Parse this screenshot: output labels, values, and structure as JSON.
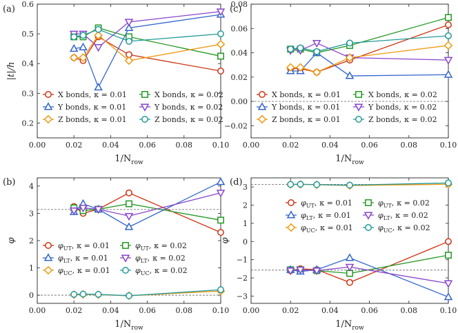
{
  "figure": {
    "panel_labels": [
      "(a)",
      "(b)",
      "(c)",
      "(d)"
    ]
  },
  "chart_data": [
    {
      "panel": "(a)",
      "type": "line",
      "xlabel_main": "1/N",
      "xlabel_sub": "row",
      "ylabel": "|t|/h",
      "xlim": [
        0,
        0.1
      ],
      "ylim": [
        0.15,
        0.6
      ],
      "xticks": [
        "0.00",
        "0.02",
        "0.04",
        "0.06",
        "0.08",
        "0.10"
      ],
      "yticks": [
        "0.2",
        "0.3",
        "0.4",
        "0.5",
        "0.6"
      ],
      "ytick_values": [
        0.2,
        0.3,
        0.4,
        0.5,
        0.6
      ],
      "legend": {
        "columns": 2,
        "items": [
          {
            "label": "X bonds,",
            "kappa": "κ = 0.01",
            "series": 0
          },
          {
            "label": "X bonds,",
            "kappa": "κ = 0.02",
            "series": 1
          },
          {
            "label": "Y bonds,",
            "kappa": "κ = 0.01",
            "series": 2
          },
          {
            "label": "Y bonds,",
            "kappa": "κ = 0.02",
            "series": 3
          },
          {
            "label": "Z bonds,",
            "kappa": "κ = 0.01",
            "series": 4
          },
          {
            "label": "Z bonds,",
            "kappa": "κ = 0.02",
            "series": 5
          }
        ]
      },
      "x": [
        0.02,
        0.025,
        0.0333,
        0.05,
        0.1
      ],
      "series": [
        {
          "name": "X bonds, κ = 0.01",
          "color": "#cc3311",
          "marker": "circle",
          "values": [
            0.42,
            0.41,
            0.49,
            0.43,
            0.375
          ]
        },
        {
          "name": "X bonds, κ = 0.02",
          "color": "#229922",
          "marker": "square",
          "values": [
            0.49,
            0.49,
            0.52,
            0.49,
            0.425
          ]
        },
        {
          "name": "Y bonds, κ = 0.01",
          "color": "#3366cc",
          "marker": "triangle-up",
          "values": [
            0.45,
            0.455,
            0.32,
            0.52,
            0.565
          ]
        },
        {
          "name": "Y bonds, κ = 0.02",
          "color": "#8844cc",
          "marker": "triangle-down",
          "values": [
            0.5,
            0.5,
            0.455,
            0.54,
            0.575
          ]
        },
        {
          "name": "Z bonds, κ = 0.01",
          "color": "#ee9911",
          "marker": "diamond",
          "values": [
            0.42,
            0.42,
            0.495,
            0.41,
            0.465
          ]
        },
        {
          "name": "Z bonds, κ = 0.02",
          "color": "#229999",
          "marker": "circle",
          "values": [
            0.49,
            0.495,
            0.515,
            0.475,
            0.5
          ]
        }
      ]
    },
    {
      "panel": "(c)",
      "type": "line",
      "xlabel_main": "1/N",
      "xlabel_sub": "row",
      "ylabel": "",
      "xlim": [
        0,
        0.1
      ],
      "ylim": [
        -0.03,
        0.08
      ],
      "xticks": [
        "0.00",
        "0.02",
        "0.04",
        "0.06",
        "0.08",
        "0.10"
      ],
      "yticks": [
        "−0.02",
        "0.00",
        "0.02",
        "0.04",
        "0.06",
        "0.08"
      ],
      "ytick_values": [
        -0.02,
        0,
        0.02,
        0.04,
        0.06,
        0.08
      ],
      "hlines": [
        0
      ],
      "legend": {
        "columns": 2,
        "items": [
          {
            "label": "X bonds,",
            "kappa": "κ = 0.01",
            "series": 0
          },
          {
            "label": "X bonds,",
            "kappa": "κ = 0.02",
            "series": 1
          },
          {
            "label": "Y bonds,",
            "kappa": "κ = 0.01",
            "series": 2
          },
          {
            "label": "Y bonds,",
            "kappa": "κ = 0.02",
            "series": 3
          },
          {
            "label": "Z bonds,",
            "kappa": "κ = 0.01",
            "series": 4
          },
          {
            "label": "Z bonds,",
            "kappa": "κ = 0.02",
            "series": 5
          }
        ]
      },
      "x": [
        0.02,
        0.025,
        0.0333,
        0.05,
        0.1
      ],
      "series": [
        {
          "name": "X bonds, κ = 0.01",
          "color": "#cc3311",
          "marker": "circle",
          "values": [
            0.027,
            0.027,
            0.024,
            0.034,
            0.063
          ]
        },
        {
          "name": "X bonds, κ = 0.02",
          "color": "#229922",
          "marker": "square",
          "values": [
            0.043,
            0.043,
            0.04,
            0.046,
            0.069
          ]
        },
        {
          "name": "Y bonds, κ = 0.01",
          "color": "#3366cc",
          "marker": "triangle-up",
          "values": [
            0.025,
            0.025,
            0.04,
            0.021,
            0.022
          ]
        },
        {
          "name": "Y bonds, κ = 0.02",
          "color": "#8844cc",
          "marker": "triangle-down",
          "values": [
            0.042,
            0.042,
            0.048,
            0.036,
            0.034
          ]
        },
        {
          "name": "Z bonds, κ = 0.01",
          "color": "#ee9911",
          "marker": "diamond",
          "values": [
            0.028,
            0.028,
            0.024,
            0.036,
            0.046
          ]
        },
        {
          "name": "Z bonds, κ = 0.02",
          "color": "#229999",
          "marker": "circle",
          "values": [
            0.043,
            0.044,
            0.041,
            0.048,
            0.054
          ]
        }
      ]
    },
    {
      "panel": "(b)",
      "type": "line",
      "xlabel_main": "1/N",
      "xlabel_sub": "row",
      "ylabel": "φ",
      "xlim": [
        0,
        0.1
      ],
      "ylim": [
        -0.3,
        4.3
      ],
      "xticks": [
        "0.00",
        "0.02",
        "0.04",
        "0.06",
        "0.08",
        "0.10"
      ],
      "yticks": [
        "0",
        "1",
        "2",
        "3",
        "4"
      ],
      "ytick_values": [
        0,
        1,
        2,
        3,
        4
      ],
      "hlines": [
        0,
        3.1416
      ],
      "legend": {
        "columns": 2,
        "items": [
          {
            "label": "φ",
            "sub": "UT",
            "kappa": "κ = 0.01",
            "series": 0
          },
          {
            "label": "φ",
            "sub": "UT",
            "kappa": "κ = 0.02",
            "series": 1
          },
          {
            "label": "φ",
            "sub": "LT",
            "kappa": "κ = 0.01",
            "series": 2
          },
          {
            "label": "φ",
            "sub": "LT",
            "kappa": "κ = 0.02",
            "series": 3
          },
          {
            "label": "φ",
            "sub": "UC",
            "kappa": "κ = 0.01",
            "series": 4
          },
          {
            "label": "φ",
            "sub": "UC",
            "kappa": "κ = 0.02",
            "series": 5
          }
        ]
      },
      "x": [
        0.02,
        0.025,
        0.0333,
        0.05,
        0.1
      ],
      "series": [
        {
          "name": "φUT, κ = 0.01",
          "color": "#cc3311",
          "marker": "circle",
          "values": [
            3.25,
            3.0,
            3.15,
            3.75,
            2.3
          ]
        },
        {
          "name": "φUT, κ = 0.02",
          "color": "#229922",
          "marker": "square",
          "values": [
            3.2,
            3.1,
            3.15,
            3.35,
            2.75
          ]
        },
        {
          "name": "φLT, κ = 0.01",
          "color": "#3366cc",
          "marker": "triangle-up",
          "values": [
            3.05,
            3.35,
            3.15,
            2.5,
            4.15
          ]
        },
        {
          "name": "φLT, κ = 0.02",
          "color": "#8844cc",
          "marker": "triangle-down",
          "values": [
            3.1,
            3.2,
            3.15,
            2.9,
            3.75
          ]
        },
        {
          "name": "φUC, κ = 0.01",
          "color": "#ee9911",
          "marker": "diamond",
          "values": [
            0.02,
            0.03,
            0.02,
            -0.02,
            0.15
          ]
        },
        {
          "name": "φUC, κ = 0.02",
          "color": "#229999",
          "marker": "circle",
          "values": [
            0.03,
            0.04,
            0.03,
            -0.02,
            0.2
          ]
        }
      ]
    },
    {
      "panel": "(d)",
      "type": "line",
      "xlabel_main": "1/N",
      "xlabel_sub": "row",
      "ylabel": "φ",
      "xlim": [
        0,
        0.1
      ],
      "ylim": [
        -3.4,
        3.5
      ],
      "xticks": [
        "0.00",
        "0.02",
        "0.04",
        "0.06",
        "0.08",
        "0.10"
      ],
      "yticks": [
        "−3",
        "−2",
        "−1",
        "0",
        "1",
        "2",
        "3"
      ],
      "ytick_values": [
        -3,
        -2,
        -1,
        0,
        1,
        2,
        3
      ],
      "hlines": [
        3.1416,
        -1.5708
      ],
      "legend": {
        "columns": 2,
        "items": [
          {
            "label": "φ",
            "sub": "UT",
            "kappa": "κ = 0.01",
            "series": 0
          },
          {
            "label": "φ",
            "sub": "UT",
            "kappa": "κ = 0.02",
            "series": 1
          },
          {
            "label": "φ",
            "sub": "LT",
            "kappa": "κ = 0.01",
            "series": 2
          },
          {
            "label": "φ",
            "sub": "LT",
            "kappa": "κ = 0.02",
            "series": 3
          },
          {
            "label": "φ",
            "sub": "UC",
            "kappa": "κ = 0.01",
            "series": 4
          },
          {
            "label": "φ",
            "sub": "UC",
            "kappa": "κ = 0.02",
            "series": 5
          }
        ]
      },
      "x": [
        0.02,
        0.025,
        0.0333,
        0.05,
        0.1
      ],
      "series": [
        {
          "name": "φUT, κ = 0.01",
          "color": "#cc3311",
          "marker": "circle",
          "values": [
            -1.6,
            -1.5,
            -1.55,
            -2.25,
            0.0
          ]
        },
        {
          "name": "φUT, κ = 0.02",
          "color": "#229922",
          "marker": "square",
          "values": [
            -1.55,
            -1.55,
            -1.6,
            -1.75,
            -0.75
          ]
        },
        {
          "name": "φLT, κ = 0.01",
          "color": "#3366cc",
          "marker": "triangle-up",
          "values": [
            -1.55,
            -1.65,
            -1.55,
            -0.9,
            -3.05
          ]
        },
        {
          "name": "φLT, κ = 0.02",
          "color": "#8844cc",
          "marker": "triangle-down",
          "values": [
            -1.6,
            -1.55,
            -1.6,
            -1.4,
            -2.3
          ]
        },
        {
          "name": "φUC, κ = 0.01",
          "color": "#ee9911",
          "marker": "diamond",
          "values": [
            3.14,
            3.14,
            3.12,
            3.08,
            3.15
          ]
        },
        {
          "name": "φUC, κ = 0.02",
          "color": "#229999",
          "marker": "circle",
          "values": [
            3.14,
            3.15,
            3.13,
            3.1,
            3.22
          ]
        }
      ]
    }
  ]
}
